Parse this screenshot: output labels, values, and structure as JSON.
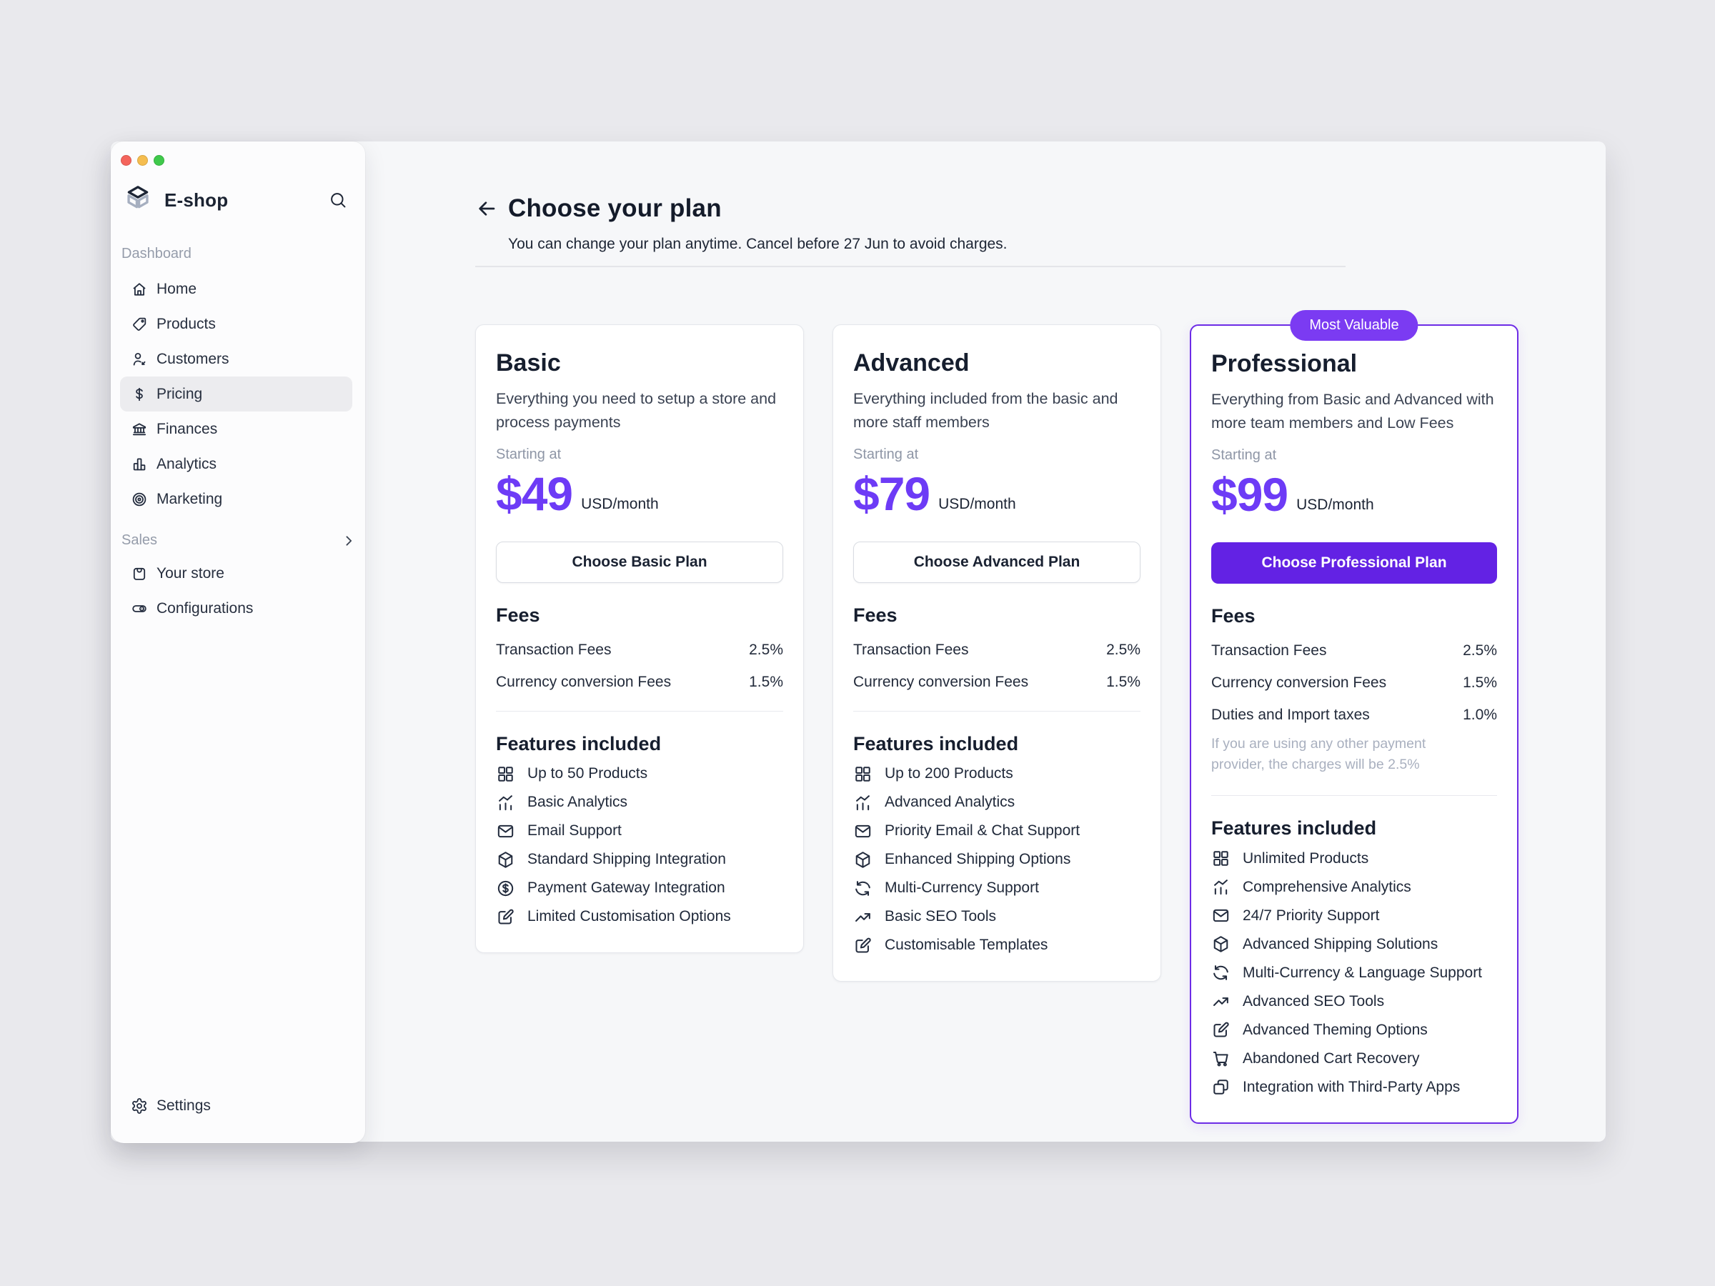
{
  "window_controls": [
    "close",
    "minimize",
    "zoom"
  ],
  "sidebar": {
    "brand": "E-shop",
    "sections": [
      {
        "label": "Dashboard",
        "chevron": false,
        "items": [
          {
            "icon": "home",
            "label": "Home",
            "active": false
          },
          {
            "icon": "tag",
            "label": "Products",
            "active": false
          },
          {
            "icon": "customers",
            "label": "Customers",
            "active": false
          },
          {
            "icon": "dollar",
            "label": "Pricing",
            "active": true
          },
          {
            "icon": "bank",
            "label": "Finances",
            "active": false
          },
          {
            "icon": "bar-chart",
            "label": "Analytics",
            "active": false
          },
          {
            "icon": "target",
            "label": "Marketing",
            "active": false
          }
        ]
      },
      {
        "label": "Sales",
        "chevron": true,
        "items": [
          {
            "icon": "shopping-bag",
            "label": "Your store",
            "active": false
          },
          {
            "icon": "toggle",
            "label": "Configurations",
            "active": false
          }
        ]
      }
    ],
    "footer": {
      "icon": "gear",
      "label": "Settings"
    }
  },
  "header": {
    "title": "Choose your plan",
    "subtitle": "You can change your plan anytime. Cancel before 27 Jun to avoid charges."
  },
  "plans": [
    {
      "name": "Basic",
      "description": "Everything you need to setup a store and process payments",
      "starting_label": "Starting at",
      "price": "$49",
      "period": "USD/month",
      "cta": "Choose Basic Plan",
      "cta_variant": "outline",
      "highlighted": false,
      "badge": "",
      "fees_title": "Fees",
      "fees": [
        {
          "label": "Transaction Fees",
          "value": "2.5%"
        },
        {
          "label": "Currency conversion Fees",
          "value": "1.5%"
        }
      ],
      "note": "",
      "features_title": "Features included",
      "features": [
        {
          "icon": "grid",
          "label": "Up to 50 Products"
        },
        {
          "icon": "analytics",
          "label": "Basic Analytics"
        },
        {
          "icon": "mail",
          "label": "Email Support"
        },
        {
          "icon": "package",
          "label": "Standard Shipping Integration"
        },
        {
          "icon": "dollar-circle",
          "label": "Payment Gateway Integration"
        },
        {
          "icon": "edit",
          "label": "Limited Customisation Options"
        }
      ]
    },
    {
      "name": "Advanced",
      "description": "Everything included from the basic and more staff members",
      "starting_label": "Starting at",
      "price": "$79",
      "period": "USD/month",
      "cta": "Choose Advanced Plan",
      "cta_variant": "outline",
      "highlighted": false,
      "badge": "",
      "fees_title": "Fees",
      "fees": [
        {
          "label": "Transaction Fees",
          "value": "2.5%"
        },
        {
          "label": "Currency conversion Fees",
          "value": "1.5%"
        }
      ],
      "note": "",
      "features_title": "Features included",
      "features": [
        {
          "icon": "grid",
          "label": "Up to 200 Products"
        },
        {
          "icon": "analytics",
          "label": "Advanced Analytics"
        },
        {
          "icon": "mail",
          "label": "Priority Email & Chat Support"
        },
        {
          "icon": "package",
          "label": "Enhanced Shipping Options"
        },
        {
          "icon": "exchange",
          "label": "Multi-Currency Support"
        },
        {
          "icon": "trend-up",
          "label": "Basic SEO Tools"
        },
        {
          "icon": "edit",
          "label": "Customisable Templates"
        }
      ]
    },
    {
      "name": "Professional",
      "description": "Everything from Basic and Advanced with more team members and Low Fees",
      "starting_label": "Starting at",
      "price": "$99",
      "period": "USD/month",
      "cta": "Choose Professional Plan",
      "cta_variant": "solid",
      "highlighted": true,
      "badge": "Most Valuable",
      "fees_title": "Fees",
      "fees": [
        {
          "label": "Transaction Fees",
          "value": "2.5%"
        },
        {
          "label": "Currency conversion Fees",
          "value": "1.5%"
        },
        {
          "label": "Duties and Import taxes",
          "value": "1.0%"
        }
      ],
      "note": "If you are using any other payment provider, the charges will be 2.5%",
      "features_title": "Features included",
      "features": [
        {
          "icon": "grid",
          "label": "Unlimited Products"
        },
        {
          "icon": "analytics",
          "label": "Comprehensive Analytics"
        },
        {
          "icon": "mail",
          "label": "24/7 Priority Support"
        },
        {
          "icon": "package",
          "label": "Advanced Shipping Solutions"
        },
        {
          "icon": "exchange",
          "label": "Multi-Currency & Language Support"
        },
        {
          "icon": "trend-up",
          "label": "Advanced SEO Tools"
        },
        {
          "icon": "edit",
          "label": "Advanced Theming Options"
        },
        {
          "icon": "cart",
          "label": "Abandoned Cart Recovery"
        },
        {
          "icon": "copy",
          "label": "Integration with Third-Party Apps"
        }
      ]
    }
  ],
  "colors": {
    "accent": "#6322e4",
    "price": "#6d3bf6",
    "badge": "#7b3bf2",
    "highlight_border": "#6d2ce6",
    "traffic_lights": [
      "#f4645c",
      "#f5bd4f",
      "#3fc94b"
    ]
  }
}
